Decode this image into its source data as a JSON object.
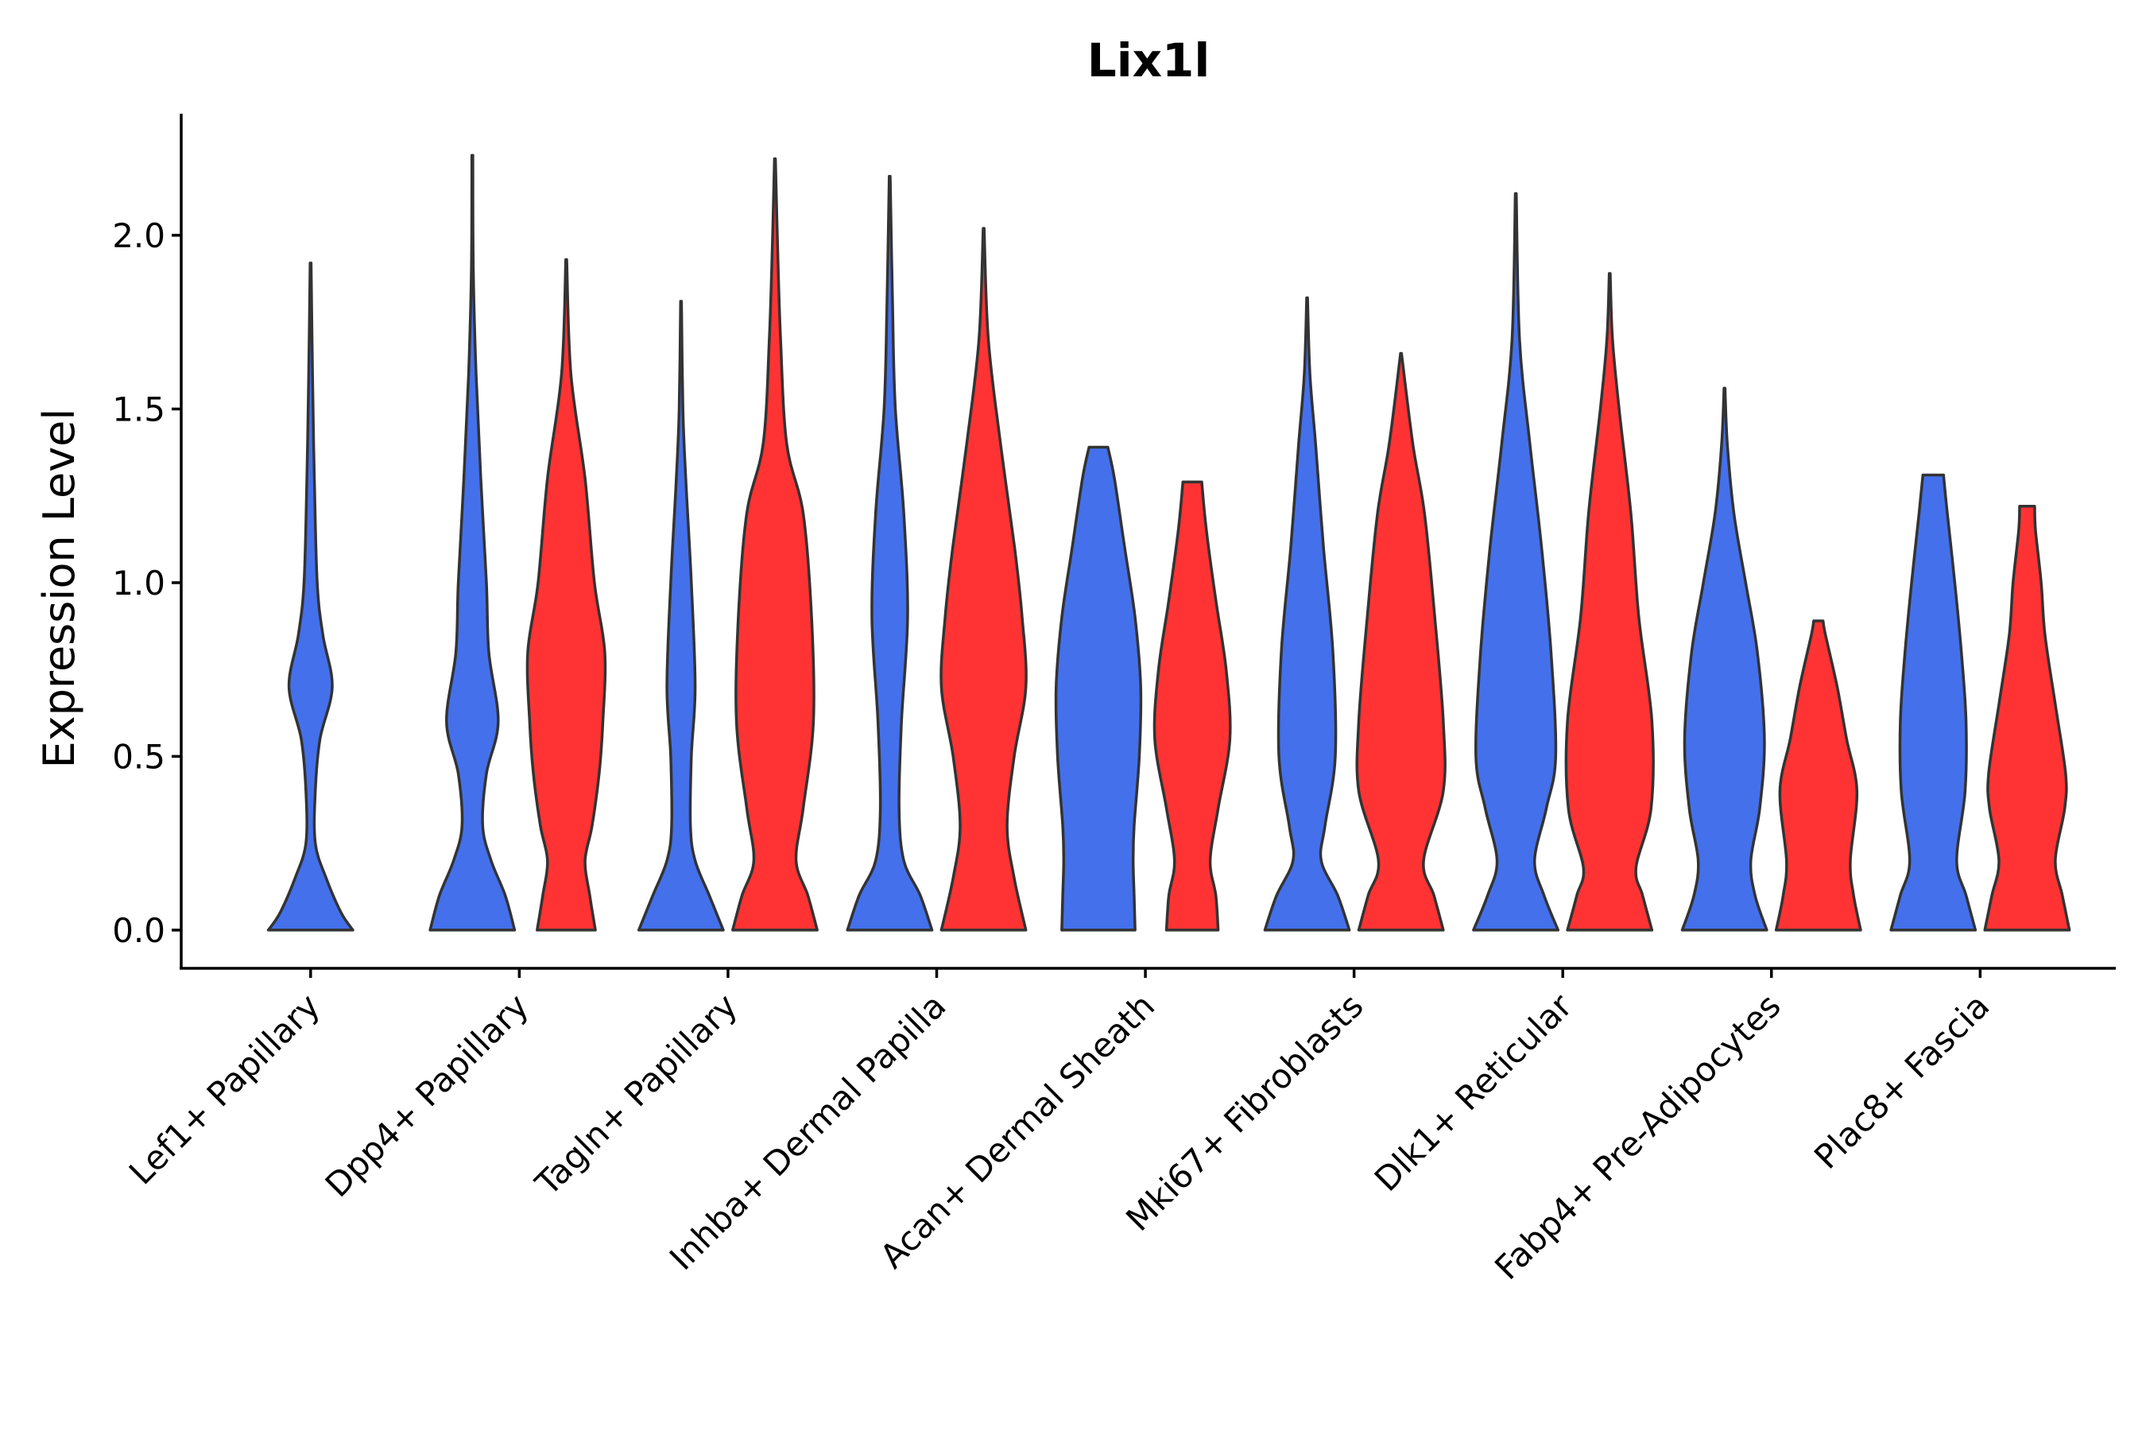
{
  "chart_data": {
    "type": "violin",
    "title": "Lix1l",
    "xlabel": "",
    "ylabel": "Expression Level",
    "ylim": [
      -0.11,
      2.35
    ],
    "yticks": [
      0.0,
      0.5,
      1.0,
      1.5,
      2.0
    ],
    "ytick_labels": [
      "0.0",
      "0.5",
      "1.0",
      "1.5",
      "2.0"
    ],
    "categories": [
      "Lef1+ Papillary",
      "Dpp4+ Papillary",
      "Tagln+ Papillary",
      "Inhba+ Dermal Papilla",
      "Acan+ Dermal Sheath",
      "Mki67+ Fibroblasts",
      "Dlk1+ Reticular",
      "Fabp4+ Pre-Adipocytes",
      "Plac8+ Fascia"
    ],
    "colors": {
      "group1": "#4470EB",
      "group2": "#FF3333"
    },
    "violins": [
      {
        "category": 0,
        "group": "group1",
        "max": 1.92,
        "profile": [
          [
            0,
            0.9
          ],
          [
            0.05,
            0.65
          ],
          [
            0.15,
            0.33
          ],
          [
            0.25,
            0.1
          ],
          [
            0.4,
            0.1
          ],
          [
            0.55,
            0.2
          ],
          [
            0.7,
            0.46
          ],
          [
            0.85,
            0.26
          ],
          [
            1.0,
            0.14
          ],
          [
            1.3,
            0.08
          ],
          [
            1.6,
            0.04
          ],
          [
            1.92,
            0.01
          ]
        ]
      },
      {
        "category": 1,
        "group": "group1",
        "max": 2.23,
        "profile": [
          [
            0,
            0.9
          ],
          [
            0.1,
            0.7
          ],
          [
            0.2,
            0.4
          ],
          [
            0.3,
            0.22
          ],
          [
            0.45,
            0.3
          ],
          [
            0.6,
            0.55
          ],
          [
            0.8,
            0.35
          ],
          [
            1.0,
            0.3
          ],
          [
            1.3,
            0.18
          ],
          [
            1.6,
            0.08
          ],
          [
            1.9,
            0.02
          ],
          [
            2.23,
            0.01
          ]
        ]
      },
      {
        "category": 1,
        "group": "group2",
        "max": 1.93,
        "profile": [
          [
            0,
            0.62
          ],
          [
            0.1,
            0.5
          ],
          [
            0.2,
            0.4
          ],
          [
            0.3,
            0.55
          ],
          [
            0.45,
            0.7
          ],
          [
            0.6,
            0.78
          ],
          [
            0.8,
            0.82
          ],
          [
            1.0,
            0.6
          ],
          [
            1.3,
            0.4
          ],
          [
            1.6,
            0.1
          ],
          [
            1.93,
            0.01
          ]
        ]
      },
      {
        "category": 2,
        "group": "group1",
        "max": 1.81,
        "profile": [
          [
            0,
            0.9
          ],
          [
            0.1,
            0.6
          ],
          [
            0.2,
            0.3
          ],
          [
            0.3,
            0.2
          ],
          [
            0.5,
            0.22
          ],
          [
            0.7,
            0.3
          ],
          [
            1.0,
            0.22
          ],
          [
            1.3,
            0.1
          ],
          [
            1.5,
            0.04
          ],
          [
            1.81,
            0.01
          ]
        ]
      },
      {
        "category": 2,
        "group": "group2",
        "max": 2.22,
        "profile": [
          [
            0,
            0.9
          ],
          [
            0.1,
            0.7
          ],
          [
            0.2,
            0.45
          ],
          [
            0.35,
            0.6
          ],
          [
            0.6,
            0.82
          ],
          [
            0.9,
            0.78
          ],
          [
            1.2,
            0.6
          ],
          [
            1.4,
            0.25
          ],
          [
            1.7,
            0.12
          ],
          [
            2.0,
            0.05
          ],
          [
            2.22,
            0.01
          ]
        ]
      },
      {
        "category": 3,
        "group": "group1",
        "max": 2.17,
        "profile": [
          [
            0,
            0.9
          ],
          [
            0.1,
            0.65
          ],
          [
            0.2,
            0.3
          ],
          [
            0.35,
            0.2
          ],
          [
            0.6,
            0.25
          ],
          [
            0.9,
            0.38
          ],
          [
            1.2,
            0.3
          ],
          [
            1.5,
            0.12
          ],
          [
            1.8,
            0.06
          ],
          [
            2.17,
            0.01
          ]
        ]
      },
      {
        "category": 3,
        "group": "group2",
        "max": 2.02,
        "profile": [
          [
            0,
            0.9
          ],
          [
            0.15,
            0.65
          ],
          [
            0.3,
            0.5
          ],
          [
            0.5,
            0.65
          ],
          [
            0.7,
            0.9
          ],
          [
            0.9,
            0.82
          ],
          [
            1.1,
            0.66
          ],
          [
            1.4,
            0.36
          ],
          [
            1.7,
            0.1
          ],
          [
            2.02,
            0.01
          ]
        ]
      },
      {
        "category": 4,
        "group": "group1",
        "max": 1.39,
        "profile": [
          [
            0,
            0.78
          ],
          [
            0.1,
            0.76
          ],
          [
            0.2,
            0.74
          ],
          [
            0.3,
            0.76
          ],
          [
            0.5,
            0.87
          ],
          [
            0.7,
            0.9
          ],
          [
            0.9,
            0.78
          ],
          [
            1.1,
            0.56
          ],
          [
            1.3,
            0.34
          ],
          [
            1.39,
            0.2
          ]
        ]
      },
      {
        "category": 4,
        "group": "group2",
        "max": 1.29,
        "profile": [
          [
            0,
            0.55
          ],
          [
            0.1,
            0.5
          ],
          [
            0.2,
            0.38
          ],
          [
            0.35,
            0.55
          ],
          [
            0.55,
            0.8
          ],
          [
            0.75,
            0.72
          ],
          [
            0.95,
            0.5
          ],
          [
            1.15,
            0.3
          ],
          [
            1.29,
            0.2
          ]
        ]
      },
      {
        "category": 5,
        "group": "group1",
        "max": 1.82,
        "profile": [
          [
            0,
            0.9
          ],
          [
            0.1,
            0.65
          ],
          [
            0.2,
            0.3
          ],
          [
            0.3,
            0.38
          ],
          [
            0.5,
            0.6
          ],
          [
            0.8,
            0.55
          ],
          [
            1.1,
            0.35
          ],
          [
            1.4,
            0.18
          ],
          [
            1.6,
            0.06
          ],
          [
            1.82,
            0.01
          ]
        ]
      },
      {
        "category": 5,
        "group": "group2",
        "max": 1.66,
        "profile": [
          [
            0,
            0.9
          ],
          [
            0.1,
            0.7
          ],
          [
            0.2,
            0.48
          ],
          [
            0.4,
            0.9
          ],
          [
            0.6,
            0.9
          ],
          [
            0.9,
            0.72
          ],
          [
            1.2,
            0.5
          ],
          [
            1.4,
            0.25
          ],
          [
            1.66,
            0.01
          ]
        ]
      },
      {
        "category": 6,
        "group": "group1",
        "max": 2.12,
        "profile": [
          [
            0,
            0.9
          ],
          [
            0.1,
            0.6
          ],
          [
            0.2,
            0.4
          ],
          [
            0.35,
            0.65
          ],
          [
            0.5,
            0.85
          ],
          [
            0.8,
            0.75
          ],
          [
            1.1,
            0.55
          ],
          [
            1.4,
            0.3
          ],
          [
            1.7,
            0.08
          ],
          [
            2.12,
            0.01
          ]
        ]
      },
      {
        "category": 6,
        "group": "group2",
        "max": 1.89,
        "profile": [
          [
            0,
            0.9
          ],
          [
            0.1,
            0.7
          ],
          [
            0.18,
            0.56
          ],
          [
            0.35,
            0.88
          ],
          [
            0.6,
            0.9
          ],
          [
            0.9,
            0.62
          ],
          [
            1.2,
            0.45
          ],
          [
            1.5,
            0.2
          ],
          [
            1.7,
            0.06
          ],
          [
            1.89,
            0.01
          ]
        ]
      },
      {
        "category": 7,
        "group": "group1",
        "max": 1.56,
        "profile": [
          [
            0,
            0.9
          ],
          [
            0.1,
            0.65
          ],
          [
            0.2,
            0.56
          ],
          [
            0.35,
            0.75
          ],
          [
            0.55,
            0.85
          ],
          [
            0.8,
            0.7
          ],
          [
            1.0,
            0.45
          ],
          [
            1.2,
            0.2
          ],
          [
            1.4,
            0.06
          ],
          [
            1.56,
            0.01
          ]
        ]
      },
      {
        "category": 7,
        "group": "group2",
        "max": 0.89,
        "profile": [
          [
            0,
            0.9
          ],
          [
            0.1,
            0.75
          ],
          [
            0.2,
            0.68
          ],
          [
            0.4,
            0.82
          ],
          [
            0.55,
            0.6
          ],
          [
            0.7,
            0.4
          ],
          [
            0.85,
            0.15
          ],
          [
            0.89,
            0.1
          ]
        ]
      },
      {
        "category": 8,
        "group": "group1",
        "max": 1.31,
        "profile": [
          [
            0,
            0.9
          ],
          [
            0.1,
            0.7
          ],
          [
            0.2,
            0.5
          ],
          [
            0.4,
            0.68
          ],
          [
            0.6,
            0.7
          ],
          [
            0.8,
            0.6
          ],
          [
            1.0,
            0.46
          ],
          [
            1.2,
            0.3
          ],
          [
            1.31,
            0.22
          ]
        ]
      },
      {
        "category": 8,
        "group": "group2",
        "max": 1.22,
        "profile": [
          [
            0,
            0.9
          ],
          [
            0.1,
            0.75
          ],
          [
            0.2,
            0.6
          ],
          [
            0.35,
            0.8
          ],
          [
            0.45,
            0.82
          ],
          [
            0.65,
            0.6
          ],
          [
            0.85,
            0.38
          ],
          [
            1.0,
            0.3
          ],
          [
            1.15,
            0.18
          ],
          [
            1.22,
            0.16
          ]
        ]
      }
    ]
  }
}
